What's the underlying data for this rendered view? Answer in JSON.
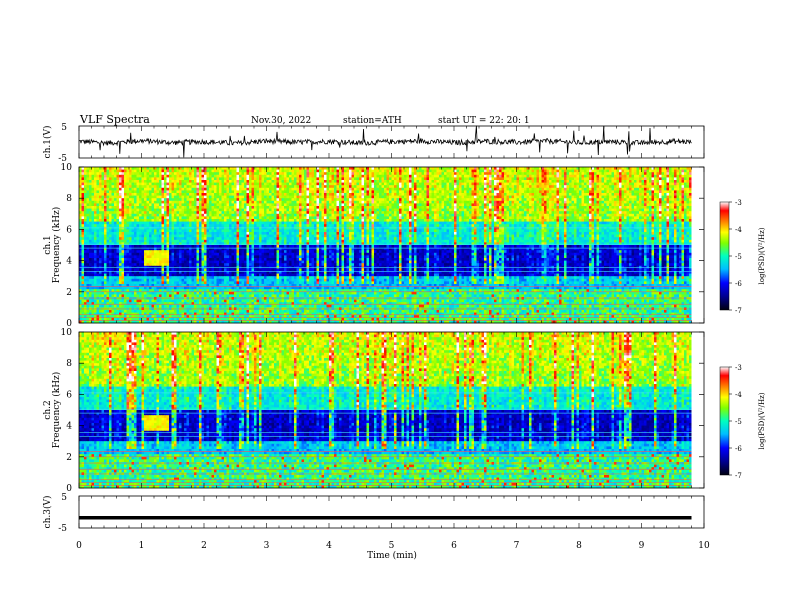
{
  "header": {
    "title": "VLF  Spectra",
    "date": "Nov.30, 2022",
    "station": "station=ATH",
    "start": "start  UT  =    22: 20: 1"
  },
  "colors": {
    "trace": "#000000",
    "axis": "#000000",
    "colormap": [
      "#000010",
      "#00008b",
      "#0000ff",
      "#00bfff",
      "#00ffbf",
      "#7fff00",
      "#ffff00",
      "#ff8000",
      "#ff0000",
      "#ffffff"
    ]
  },
  "chart_data": [
    {
      "type": "line",
      "name": "ch1-waveform",
      "ylabel": "ch.1(V)",
      "ylim": [
        -5,
        5
      ],
      "yticks": [
        "5",
        "-5"
      ],
      "xlim": [
        0,
        10
      ],
      "x": [
        0,
        0.5,
        1.0,
        1.5,
        2.0,
        2.5,
        3.0,
        3.5,
        4.0,
        4.5,
        5.0,
        5.5,
        6.0,
        6.5,
        7.0,
        7.5,
        8.0,
        8.5,
        9.0,
        9.5,
        9.8
      ],
      "y": [
        0.2,
        -0.3,
        0.4,
        -0.2,
        0.1,
        -0.4,
        0.3,
        -0.1,
        0.2,
        -0.3,
        0.1,
        0.3,
        -0.2,
        0.2,
        -0.1,
        0.3,
        -0.2,
        0.1,
        -0.3,
        0.2,
        0.0
      ]
    },
    {
      "type": "heatmap",
      "name": "ch1-spectrogram",
      "ylabel_top": "ch.1",
      "ylabel": "Frequency  (kHz)",
      "xlim": [
        0,
        9.8
      ],
      "ylim": [
        0,
        10
      ],
      "yticks": [
        "0",
        "2",
        "4",
        "6",
        "8",
        "10"
      ],
      "colorbar": {
        "label": "log(PSD)(V²/Hz)",
        "ticks": [
          "-3",
          "-4",
          "-5",
          "-6",
          "-7"
        ],
        "range": [
          -7,
          -3
        ]
      }
    },
    {
      "type": "heatmap",
      "name": "ch2-spectrogram",
      "ylabel_top": "ch.2",
      "ylabel": "Frequency  (kHz)",
      "xlim": [
        0,
        9.8
      ],
      "ylim": [
        0,
        10
      ],
      "yticks": [
        "0",
        "2",
        "4",
        "6",
        "8",
        "10"
      ],
      "colorbar": {
        "label": "log(PSD)(V²/Hz)",
        "ticks": [
          "-3",
          "-4",
          "-5",
          "-6",
          "-7"
        ],
        "range": [
          -7,
          -3
        ]
      }
    },
    {
      "type": "line",
      "name": "ch3-waveform",
      "ylabel": "ch.3(V)",
      "ylim": [
        -5,
        5
      ],
      "yticks": [
        "5",
        "-5"
      ],
      "xlim": [
        0,
        10
      ],
      "x": [
        0,
        9.8
      ],
      "y": [
        -1.8,
        -1.8
      ]
    }
  ],
  "xaxis": {
    "label": "Time  (min)",
    "ticks": [
      "0",
      "1",
      "2",
      "3",
      "4",
      "5",
      "6",
      "7",
      "8",
      "9",
      "10"
    ]
  }
}
